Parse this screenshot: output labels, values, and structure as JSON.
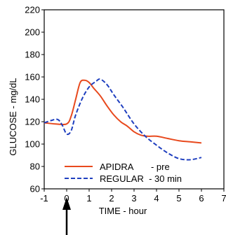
{
  "chart_data": {
    "type": "line",
    "title": "",
    "xlabel": "TIME - hour",
    "ylabel": "GLUCOSE - mg/dL",
    "xlim": [
      -1,
      7
    ],
    "ylim": [
      60,
      220
    ],
    "xticks": [
      -1,
      0,
      1,
      2,
      3,
      4,
      5,
      6,
      7
    ],
    "yticks": [
      60,
      80,
      100,
      120,
      140,
      160,
      180,
      200,
      220
    ],
    "grid": false,
    "legend_position": "bottom-center",
    "annotations": [
      {
        "type": "arrow",
        "x": 0,
        "direction": "up"
      }
    ],
    "series": [
      {
        "name": "APIDRA       - pre",
        "color": "#e8491d",
        "style": "solid",
        "x": [
          -1,
          -0.5,
          0,
          0.2,
          0.4,
          0.6,
          0.8,
          1.0,
          1.2,
          1.5,
          1.8,
          2.1,
          2.4,
          2.7,
          3.0,
          3.3,
          3.6,
          4.0,
          4.5,
          5.0,
          5.5,
          6.0
        ],
        "y": [
          119,
          118,
          118,
          125,
          140,
          155,
          157,
          155,
          150,
          143,
          134,
          126,
          120,
          116,
          111,
          108,
          107,
          107,
          105,
          103,
          102,
          101
        ]
      },
      {
        "name": "REGULAR  - 30 min",
        "color": "#1f3fbf",
        "style": "dashed",
        "x": [
          -1,
          -0.7,
          -0.4,
          -0.2,
          0,
          0.2,
          0.4,
          0.7,
          1.0,
          1.3,
          1.5,
          1.8,
          2.1,
          2.5,
          3.0,
          3.5,
          4.0,
          4.5,
          5.0,
          5.5,
          6.0
        ],
        "y": [
          119,
          121,
          122,
          117,
          109,
          112,
          126,
          141,
          151,
          156,
          158,
          153,
          144,
          133,
          118,
          107,
          99,
          92,
          87,
          86,
          88
        ]
      }
    ]
  }
}
